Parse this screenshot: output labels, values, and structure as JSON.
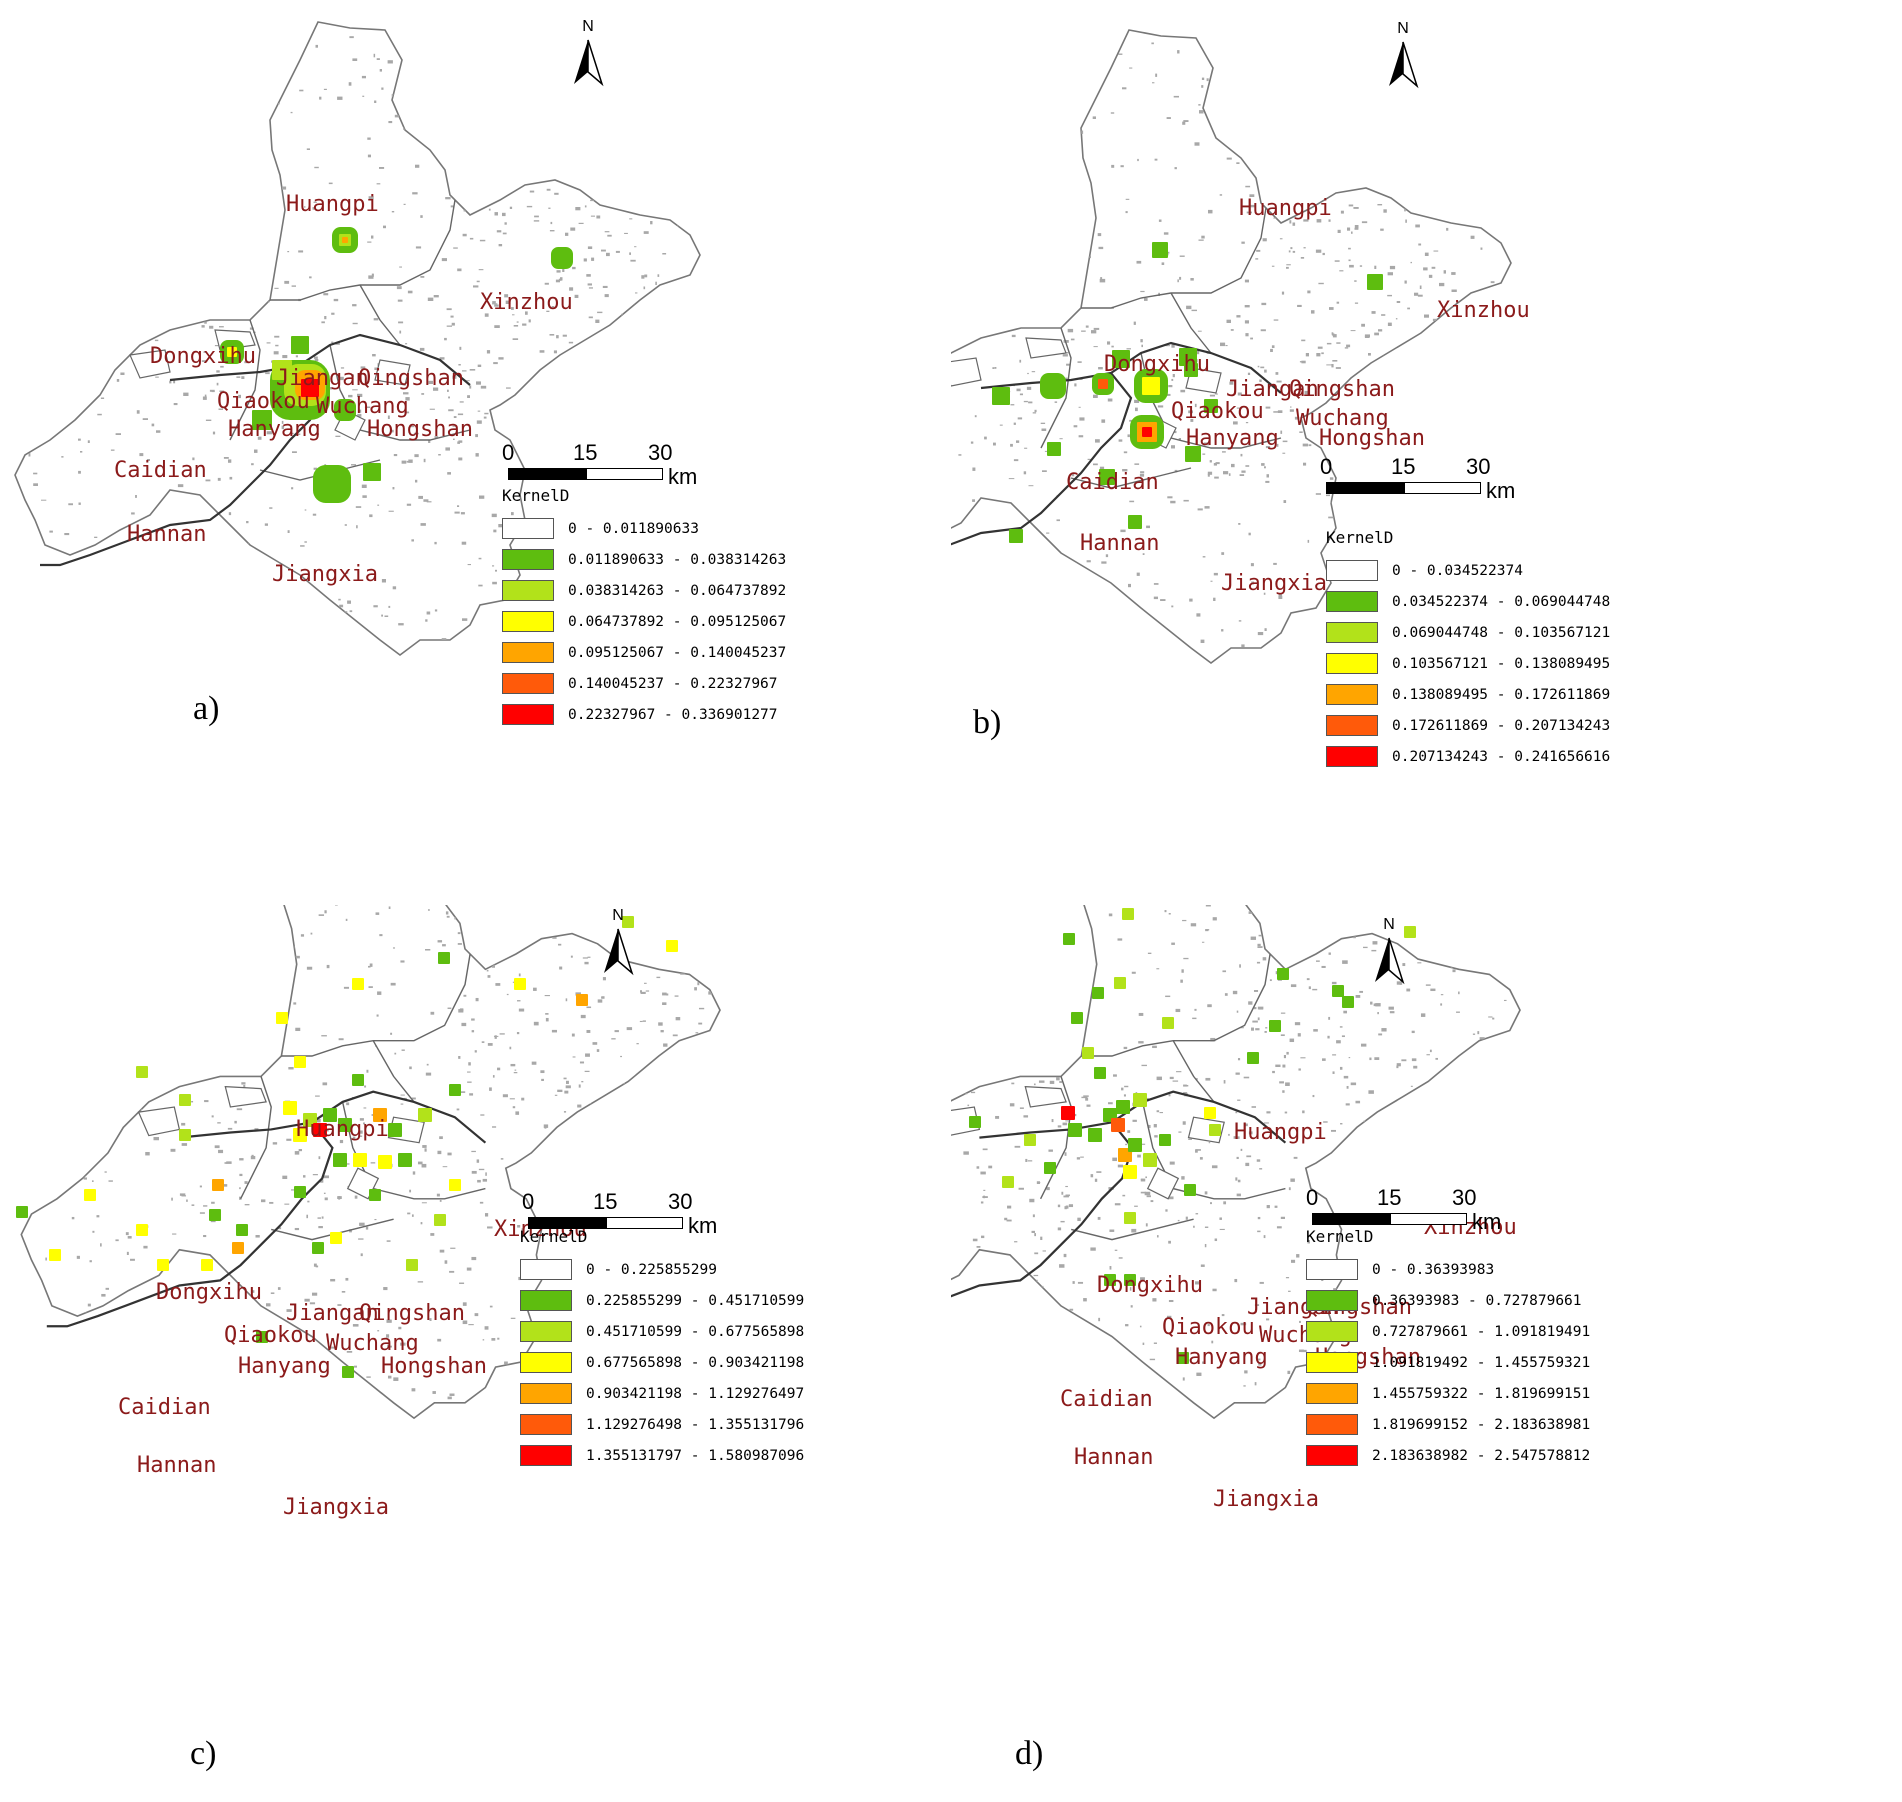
{
  "legend_title": "KernelD",
  "scale": {
    "ticks": [
      "0",
      "15",
      "30"
    ],
    "unit": "km"
  },
  "north_label": "N",
  "colors": {
    "class0": "#ffffff",
    "class1": "#5ebd0f",
    "class2": "#b2e21a",
    "class3": "#ffff00",
    "class4": "#ffa500",
    "class5": "#ff5a0a",
    "class6": "#ff0000",
    "district_label": "#8b1a1a",
    "land_texture": "#a8a8a8"
  },
  "panels": [
    {
      "id": "a",
      "label": "a)",
      "districts": [
        "Huangpi",
        "Xinzhou",
        "Dongxihu",
        "Jiangan",
        "Qingshan",
        "Qiaokou",
        "Wuchang",
        "Hanyang",
        "Hongshan",
        "Caidian",
        "Hannan",
        "Jiangxia"
      ],
      "legend": [
        "0 - 0.011890633",
        "0.011890633 - 0.038314263",
        "0.038314263 - 0.064737892",
        "0.064737892 - 0.095125067",
        "0.095125067 - 0.140045237",
        "0.140045237 - 0.22327967",
        "0.22327967 - 0.336901277"
      ]
    },
    {
      "id": "b",
      "label": "b)",
      "districts": [
        "Huangpi",
        "Xinzhou",
        "Dongxihu",
        "Jiangan",
        "Qingshan",
        "Qiaokou",
        "Wuchang",
        "Hanyang",
        "Hongshan",
        "Caidian",
        "Hannan",
        "Jiangxia"
      ],
      "legend": [
        "0 - 0.034522374",
        "0.034522374 - 0.069044748",
        "0.069044748 - 0.103567121",
        "0.103567121 - 0.138089495",
        "0.138089495 - 0.172611869",
        "0.172611869 - 0.207134243",
        "0.207134243 - 0.241656616"
      ]
    },
    {
      "id": "c",
      "label": "c)",
      "districts": [
        "Huangpi",
        "Xinzhou",
        "Dongxihu",
        "Jiangan",
        "Qingshan",
        "Qiaokou",
        "Wuchang",
        "Hanyang",
        "Hongshan",
        "Caidian",
        "Hannan",
        "Jiangxia"
      ],
      "legend": [
        "0 - 0.225855299",
        "0.225855299 - 0.451710599",
        "0.451710599 - 0.677565898",
        "0.677565898 - 0.903421198",
        "0.903421198 - 1.129276497",
        "1.129276498 - 1.355131796",
        "1.355131797 - 1.580987096"
      ]
    },
    {
      "id": "d",
      "label": "d)",
      "districts": [
        "Huangpi",
        "Xinzhou",
        "Dongxihu",
        "Jiangan",
        "Qingshan",
        "Qiaokou",
        "Wuchang",
        "Hanyang",
        "Hongshan",
        "Caidian",
        "Hannan",
        "Jiangxia"
      ],
      "legend": [
        "0 - 0.36393983",
        "0.36393983 - 0.727879661",
        "0.727879661 - 1.091819491",
        "1.091819492 - 1.455759321",
        "1.455759322 - 1.819699151",
        "1.819699152 - 2.183638981",
        "2.183638982 - 2.547578812"
      ]
    }
  ]
}
